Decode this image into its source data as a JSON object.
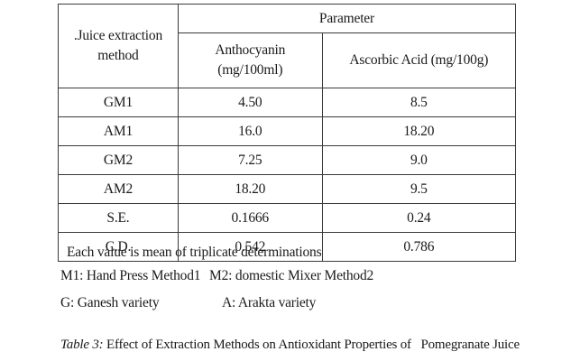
{
  "table": {
    "header": {
      "method": ".Juice extraction method",
      "parameter": "Parameter",
      "col1": "Anthocyanin (mg/100ml)",
      "col2": "Ascorbic Acid (mg/100g)"
    },
    "rows": [
      {
        "method": "GM1",
        "anthocyanin": "4.50",
        "ascorbic": "8.5"
      },
      {
        "method": "AM1",
        "anthocyanin": "16.0",
        "ascorbic": "18.20"
      },
      {
        "method": "GM2",
        "anthocyanin": "7.25",
        "ascorbic": "9.0"
      },
      {
        "method": "AM2",
        "anthocyanin": "18.20",
        "ascorbic": "9.5"
      },
      {
        "method": "S.E.",
        "anthocyanin": "0.1666",
        "ascorbic": "0.24"
      },
      {
        "method": "C.D.",
        "anthocyanin": "0.542",
        "ascorbic": "0.786"
      }
    ]
  },
  "notes": {
    "line1": "Each value is mean of triplicate determinations",
    "m1": "M1: Hand Press Method1",
    "m2": "M2: domestic Mixer Method2",
    "g": "G: Ganesh variety",
    "a": "A: Arakta variety"
  },
  "caption": {
    "label": "Table 3:",
    "text": " Effect of Extraction Methods on Antioxidant Properties of   Pomegranate Juice"
  }
}
